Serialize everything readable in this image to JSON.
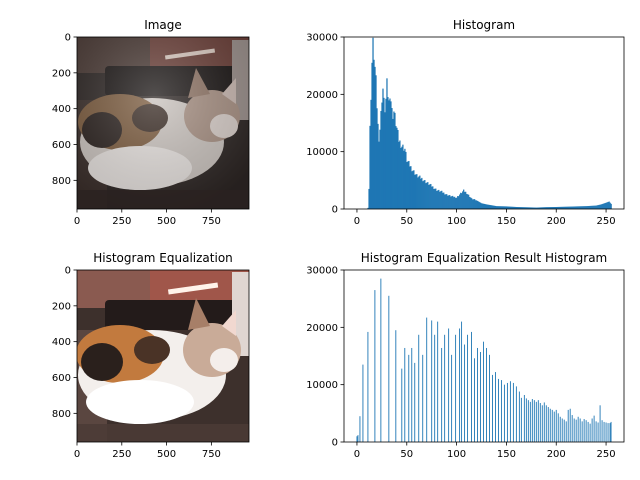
{
  "colors": {
    "bar": "#1f77b4",
    "axes": "#000000",
    "background": "#ffffff"
  },
  "chart_data": [
    {
      "id": "image",
      "type": "image",
      "title": "Image",
      "xlim": [
        0,
        960
      ],
      "ylim": [
        960,
        0
      ],
      "xticks": [
        0,
        250,
        500,
        750
      ],
      "yticks": [
        0,
        200,
        400,
        600,
        800
      ],
      "depicts": "cat-photo"
    },
    {
      "id": "histogram",
      "type": "bar",
      "title": "Histogram",
      "xlim": [
        -13,
        268
      ],
      "ylim": [
        0,
        30000
      ],
      "xticks": [
        0,
        50,
        100,
        150,
        200,
        250
      ],
      "yticks": [
        0,
        10000,
        20000,
        30000
      ],
      "bins": [
        0,
        255
      ],
      "anchors": [
        [
          0,
          0
        ],
        [
          10,
          0
        ],
        [
          11,
          200
        ],
        [
          12,
          3500
        ],
        [
          13,
          14000
        ],
        [
          14,
          20000
        ],
        [
          15,
          25500
        ],
        [
          16,
          28500
        ],
        [
          17,
          27000
        ],
        [
          18,
          24500
        ],
        [
          19,
          22000
        ],
        [
          20,
          18000
        ],
        [
          21,
          14500
        ],
        [
          22,
          12500
        ],
        [
          23,
          14000
        ],
        [
          24,
          16500
        ],
        [
          25,
          19500
        ],
        [
          26,
          21000
        ],
        [
          27,
          18500
        ],
        [
          28,
          17500
        ],
        [
          29,
          19000
        ],
        [
          30,
          21500
        ],
        [
          31,
          20000
        ],
        [
          32,
          18500
        ],
        [
          33,
          20500
        ],
        [
          34,
          19000
        ],
        [
          35,
          17000
        ],
        [
          36,
          16500
        ],
        [
          37,
          17000
        ],
        [
          38,
          16000
        ],
        [
          40,
          14000
        ],
        [
          42,
          12000
        ],
        [
          45,
          11000
        ],
        [
          48,
          10500
        ],
        [
          50,
          8500
        ],
        [
          55,
          7000
        ],
        [
          60,
          5800
        ],
        [
          65,
          5300
        ],
        [
          70,
          4600
        ],
        [
          75,
          4000
        ],
        [
          80,
          3300
        ],
        [
          85,
          3000
        ],
        [
          90,
          2500
        ],
        [
          95,
          2200
        ],
        [
          100,
          2000
        ],
        [
          104,
          2700
        ],
        [
          107,
          3200
        ],
        [
          110,
          2800
        ],
        [
          115,
          1800
        ],
        [
          120,
          1500
        ],
        [
          125,
          1000
        ],
        [
          130,
          800
        ],
        [
          140,
          500
        ],
        [
          150,
          450
        ],
        [
          160,
          350
        ],
        [
          170,
          300
        ],
        [
          180,
          250
        ],
        [
          190,
          320
        ],
        [
          200,
          350
        ],
        [
          210,
          400
        ],
        [
          220,
          450
        ],
        [
          230,
          500
        ],
        [
          240,
          600
        ],
        [
          245,
          800
        ],
        [
          250,
          1100
        ],
        [
          253,
          1300
        ],
        [
          255,
          900
        ]
      ]
    },
    {
      "id": "equalized-image",
      "type": "image",
      "title": "Histogram Equalization",
      "xlim": [
        0,
        960
      ],
      "ylim": [
        960,
        0
      ],
      "xticks": [
        0,
        250,
        500,
        750
      ],
      "yticks": [
        0,
        200,
        400,
        600,
        800
      ],
      "depicts": "cat-photo-equalized"
    },
    {
      "id": "equalized-histogram",
      "type": "bar",
      "title": "Histogram Equalization Result Histogram",
      "xlim": [
        -13,
        268
      ],
      "ylim": [
        0,
        30000
      ],
      "xticks": [
        0,
        50,
        100,
        150,
        200,
        250
      ],
      "yticks": [
        0,
        10000,
        20000,
        30000
      ],
      "spikes": [
        [
          0,
          1000
        ],
        [
          1,
          1200
        ],
        [
          3,
          4500
        ],
        [
          6,
          13500
        ],
        [
          11,
          19200
        ],
        [
          18,
          26500
        ],
        [
          24,
          28500
        ],
        [
          32,
          25500
        ],
        [
          39,
          19500
        ],
        [
          45,
          12800
        ],
        [
          48,
          16400
        ],
        [
          52,
          15200
        ],
        [
          55,
          16400
        ],
        [
          58,
          13800
        ],
        [
          62,
          18700
        ],
        [
          66,
          15200
        ],
        [
          70,
          21700
        ],
        [
          75,
          21200
        ],
        [
          78,
          18700
        ],
        [
          81,
          21000
        ],
        [
          85,
          16400
        ],
        [
          88,
          18700
        ],
        [
          92,
          19800
        ],
        [
          95,
          15200
        ],
        [
          99,
          18700
        ],
        [
          103,
          19800
        ],
        [
          105,
          21000
        ],
        [
          108,
          17000
        ],
        [
          111,
          18700
        ],
        [
          115,
          19200
        ],
        [
          118,
          14600
        ],
        [
          121,
          16400
        ],
        [
          124,
          15700
        ],
        [
          127,
          17500
        ],
        [
          130,
          16400
        ],
        [
          133,
          15200
        ],
        [
          136,
          11700
        ],
        [
          139,
          12200
        ],
        [
          142,
          11000
        ],
        [
          145,
          10800
        ],
        [
          148,
          10000
        ],
        [
          151,
          10300
        ],
        [
          154,
          10600
        ],
        [
          157,
          10300
        ],
        [
          160,
          9700
        ],
        [
          163,
          8800
        ],
        [
          165,
          7700
        ],
        [
          168,
          8200
        ],
        [
          170,
          7600
        ],
        [
          172,
          7300
        ],
        [
          174,
          7000
        ],
        [
          176,
          7500
        ],
        [
          178,
          7300
        ],
        [
          180,
          7000
        ],
        [
          182,
          7300
        ],
        [
          184,
          6800
        ],
        [
          186,
          6400
        ],
        [
          188,
          6900
        ],
        [
          190,
          6400
        ],
        [
          192,
          6100
        ],
        [
          194,
          5800
        ],
        [
          196,
          5600
        ],
        [
          198,
          5300
        ],
        [
          200,
          5600
        ],
        [
          202,
          5000
        ],
        [
          204,
          4400
        ],
        [
          206,
          4100
        ],
        [
          208,
          3900
        ],
        [
          210,
          3600
        ],
        [
          212,
          5600
        ],
        [
          214,
          5800
        ],
        [
          216,
          4700
        ],
        [
          218,
          4100
        ],
        [
          220,
          3900
        ],
        [
          222,
          4400
        ],
        [
          224,
          4100
        ],
        [
          226,
          3600
        ],
        [
          228,
          4000
        ],
        [
          230,
          3800
        ],
        [
          232,
          3500
        ],
        [
          234,
          3200
        ],
        [
          236,
          4100
        ],
        [
          238,
          4600
        ],
        [
          240,
          3600
        ],
        [
          242,
          3400
        ],
        [
          244,
          6400
        ],
        [
          246,
          3800
        ],
        [
          248,
          3500
        ],
        [
          250,
          3400
        ],
        [
          252,
          3300
        ],
        [
          254,
          3300
        ],
        [
          255,
          3500
        ]
      ]
    }
  ]
}
